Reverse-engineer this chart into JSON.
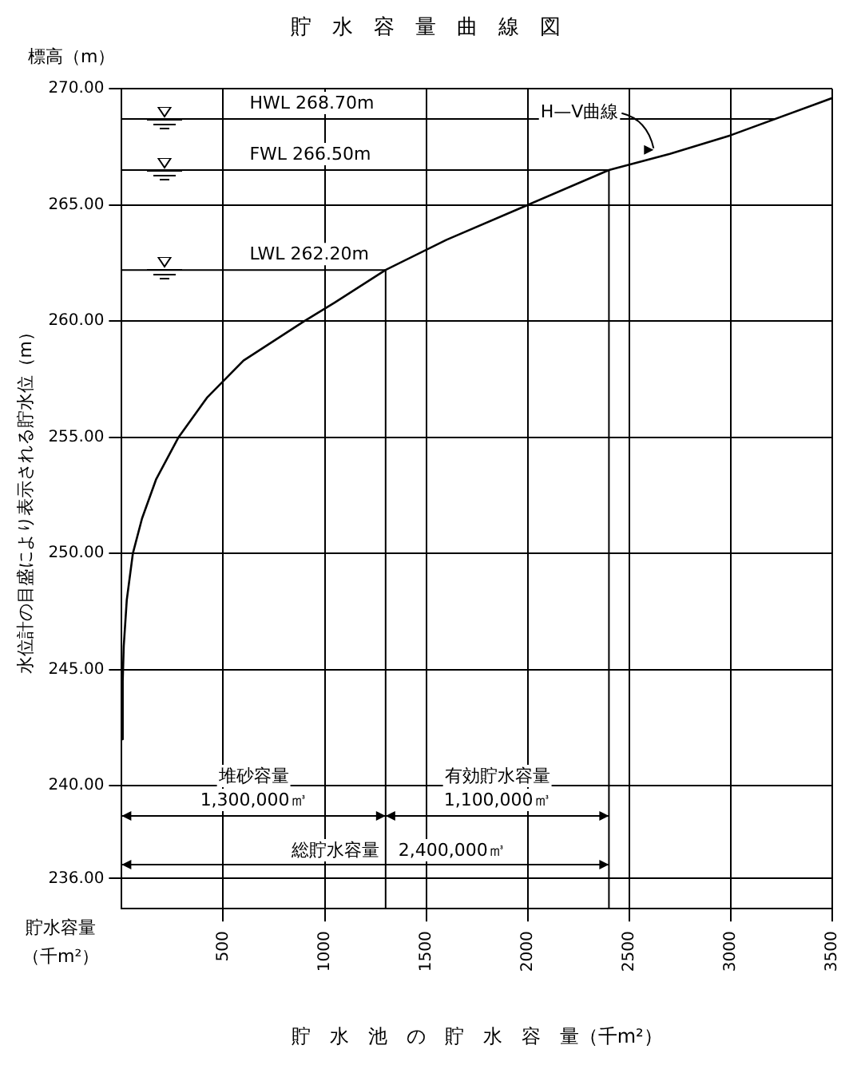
{
  "chart_data": {
    "type": "line",
    "title": "貯　水　容　量　曲　線　図",
    "xlabel": "貯　水　池　の　貯　水　容　量（千m²）",
    "ylabel": "水位計の目盛により表示される貯水位（m）",
    "annotations": [
      "標高（m）",
      "貯水容量",
      "（千m²）",
      "堆砂容量",
      "1,300,000㎥",
      "有効貯水容量",
      "1,100,000㎥",
      "総貯水容量",
      "2,400,000㎥",
      {
        "text": "H—V曲線",
        "x": 2620,
        "y": 267.3
      }
    ],
    "series": [
      {
        "color": "#000000",
        "x": [
          2,
          5,
          10,
          25,
          55,
          100,
          170,
          280,
          420,
          600,
          900,
          1050,
          1300,
          1600,
          2000,
          2400,
          2700,
          3000,
          3500
        ],
        "values": [
          242.0,
          244.5,
          246.0,
          248.0,
          250.0,
          251.5,
          253.2,
          255.0,
          256.7,
          258.3,
          260.0,
          260.8,
          262.2,
          263.5,
          265.0,
          266.5,
          267.2,
          268.0,
          269.6
        ]
      }
    ],
    "xlim": [
      0,
      3500
    ],
    "xticks": [
      500,
      1000,
      1500,
      2000,
      2500,
      3000,
      3500
    ],
    "ylim": [
      234.7,
      270
    ],
    "yticks": [
      {
        "value": 236,
        "label": "236.00"
      },
      {
        "value": 240,
        "label": "240.00"
      },
      {
        "value": 245,
        "label": "245.00"
      },
      {
        "value": 250,
        "label": "250.00"
      },
      {
        "value": 255,
        "label": "255.00"
      },
      {
        "value": 260,
        "label": "260.00"
      },
      {
        "value": 265,
        "label": "265.00"
      },
      {
        "value": 270,
        "label": "270.00"
      }
    ],
    "ref_lines": [
      {
        "axis": "y",
        "value": 268.7,
        "label": "HWL 268.70m"
      },
      {
        "axis": "y",
        "value": 266.5,
        "label": "FWL 266.50m"
      },
      {
        "axis": "y",
        "value": 262.2,
        "label": "LWL 262.20m"
      },
      {
        "axis": "x",
        "value": 1300
      },
      {
        "axis": "x",
        "value": 2400
      }
    ],
    "grid": true,
    "legend": false,
    "marker": "none",
    "line_style": "solid"
  }
}
